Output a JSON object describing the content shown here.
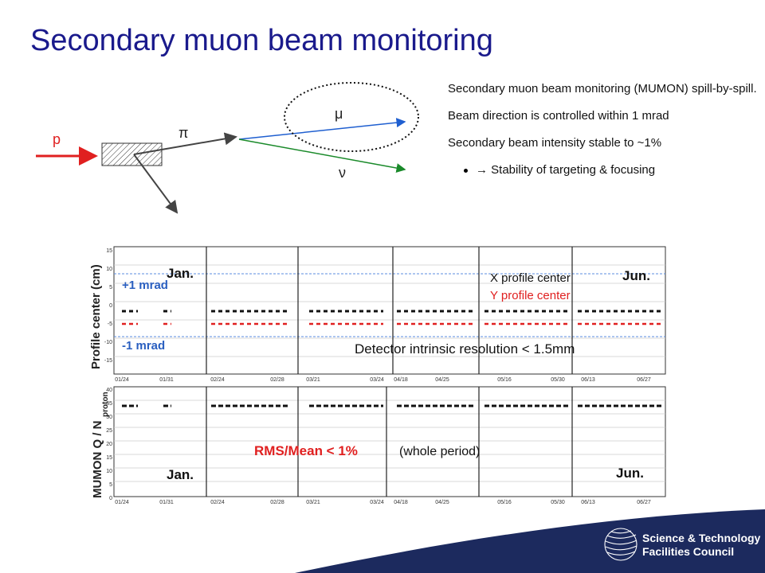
{
  "slide": {
    "title": "Secondary muon beam monitoring"
  },
  "diagram": {
    "labels": {
      "p": "p",
      "pi": "π",
      "mu": "μ",
      "nu": "ν"
    },
    "colors": {
      "proton": "#e02020",
      "muon": "#1f5fd0",
      "neutrino": "#1a8a2a",
      "title": "#1a1a8c"
    }
  },
  "bullets": {
    "line1": "Secondary muon beam monitoring (MUMON) spill-by-spill.",
    "line2": "Beam direction is controlled within 1 mrad",
    "line3": "Secondary beam intensity stable to ~1%",
    "line4": "→ Stability of targeting & focusing"
  },
  "plots": {
    "top": {
      "ylabel": "Profile center (cm)",
      "month_start": "Jan.",
      "month_end": "Jun.",
      "plus_label": "+1 mrad",
      "minus_label": "-1 mrad",
      "legend_x": "X profile center",
      "legend_y": "Y profile center",
      "resolution": "Detector intrinsic resolution < 1.5mm",
      "yticks": [
        "15",
        "10",
        "5",
        "0",
        "-5",
        "-10",
        "-15"
      ],
      "xticks": [
        "01/24",
        "01/31",
        "02/24",
        "02/28",
        "03/21",
        "03/24",
        "04/18",
        "04/25",
        "05/16",
        "05/30",
        "06/13",
        "06/27"
      ]
    },
    "bottom": {
      "ylabel": "MUMON Q / N",
      "ylabel_sub": "proton",
      "month_start": "Jan.",
      "month_end": "Jun.",
      "rms": "RMS/Mean < 1%",
      "period": "(whole period)",
      "yticks": [
        "40",
        "35",
        "30",
        "25",
        "20",
        "15",
        "10",
        "5",
        "0"
      ],
      "xticks": [
        "01/24",
        "01/31",
        "02/24",
        "02/28",
        "03/21",
        "03/24",
        "04/18",
        "04/25",
        "05/16",
        "05/30",
        "06/13",
        "06/27"
      ]
    }
  },
  "footer": {
    "org_line1": "Science & Technology",
    "org_line2": "Facilities Council",
    "color": "#1c2a5e"
  }
}
